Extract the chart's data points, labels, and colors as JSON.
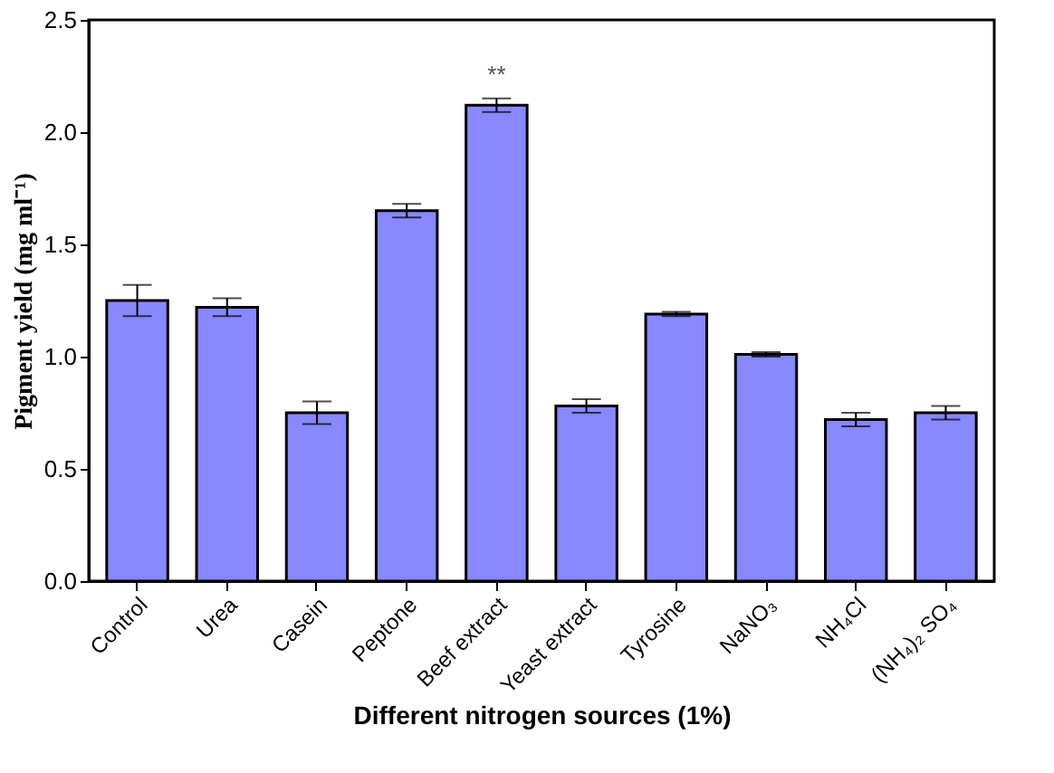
{
  "chart_data": {
    "type": "bar",
    "xlabel": "Different nitrogen sources (1%)",
    "ylabel": "Pigment yield (mg ml⁻¹)",
    "categories": [
      "Control",
      "Urea",
      "Casein",
      "Peptone",
      "Beef extract",
      "Yeast extract",
      "Tyrosine",
      "NaNO₃",
      "NH₄Cl",
      "(NH₄)₂ SO₄"
    ],
    "values": [
      1.25,
      1.22,
      0.75,
      1.65,
      2.12,
      0.78,
      1.19,
      1.01,
      0.72,
      0.75
    ],
    "errors": [
      0.07,
      0.04,
      0.05,
      0.03,
      0.03,
      0.03,
      0.01,
      0.01,
      0.03,
      0.03
    ],
    "color": "#8888ff",
    "ylim": [
      0,
      2.5
    ],
    "yticks": [
      {
        "value": 0,
        "label": "0.0"
      },
      0.5,
      {
        "value": 1,
        "label": "1.0"
      },
      1.5,
      {
        "value": 2,
        "label": "2.0"
      },
      2.5
    ],
    "annotations": [
      "**"
    ],
    "grid": false
  }
}
